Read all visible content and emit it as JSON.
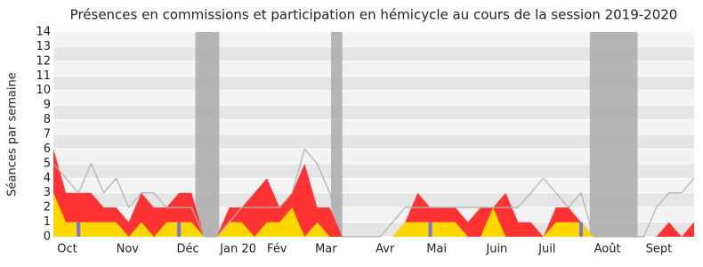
{
  "chart_data": {
    "type": "area",
    "title": "Présences en commissions et participation en hémicycle au cours de la session 2019-2020",
    "y_label": "Séances par semaine",
    "xlim": [
      0,
      51
    ],
    "ylim": [
      0,
      14
    ],
    "yticks": [
      0,
      1,
      2,
      3,
      4,
      5,
      6,
      7,
      8,
      9,
      10,
      11,
      12,
      13,
      14
    ],
    "xticks": [
      {
        "value": 1.1,
        "label": "Oct"
      },
      {
        "value": 5.9,
        "label": "Nov"
      },
      {
        "value": 10.7,
        "label": "Déc"
      },
      {
        "value": 14.7,
        "label": "Jan 20"
      },
      {
        "value": 17.8,
        "label": "Fév"
      },
      {
        "value": 21.7,
        "label": "Mar"
      },
      {
        "value": 26.4,
        "label": "Avr"
      },
      {
        "value": 30.5,
        "label": "Mai"
      },
      {
        "value": 35.3,
        "label": "Juin"
      },
      {
        "value": 39.3,
        "label": "Juil"
      },
      {
        "value": 44.1,
        "label": "Août"
      },
      {
        "value": 48.2,
        "label": "Sept"
      }
    ],
    "grid": true,
    "shaded_ranges": [
      [
        11.3,
        13.2
      ],
      [
        22.1,
        23.0
      ],
      [
        42.7,
        46.5
      ]
    ],
    "series": [
      {
        "color": "#ff3333",
        "style": "area",
        "values": [
          6,
          3,
          3,
          3,
          2,
          2,
          1,
          3,
          2,
          2,
          3,
          3,
          0,
          0,
          2,
          2,
          3,
          4,
          2,
          3,
          5,
          2,
          2,
          0,
          0,
          0,
          0,
          0,
          1,
          3,
          2,
          2,
          2,
          1,
          2,
          2,
          3,
          1,
          1,
          0,
          2,
          2,
          1,
          0,
          0,
          0,
          0,
          0,
          0,
          1,
          0,
          1
        ]
      },
      {
        "color": "#ffd700",
        "style": "area",
        "values": [
          3,
          1,
          1,
          1,
          1,
          1,
          0,
          1,
          0,
          1,
          1,
          1,
          0,
          0,
          1,
          1,
          0,
          1,
          1,
          2,
          0,
          1,
          0,
          0,
          0,
          0,
          0,
          0,
          1,
          1,
          1,
          1,
          1,
          0,
          0,
          2,
          0,
          0,
          0,
          0,
          1,
          1,
          1,
          0,
          0,
          0,
          0,
          0,
          0,
          0,
          0,
          0
        ]
      },
      {
        "color": "#b0b0b0",
        "style": "line",
        "values": [
          5,
          4,
          3,
          5,
          3,
          4,
          2,
          3,
          3,
          2,
          2,
          2,
          0,
          0,
          1,
          2,
          2,
          2,
          2,
          3,
          6,
          5,
          3,
          0,
          0,
          0,
          0,
          1,
          2,
          2,
          2,
          2,
          2,
          2,
          2,
          2,
          2,
          2,
          3,
          4,
          3,
          2,
          3,
          0,
          0,
          0,
          0,
          0,
          2,
          3,
          3,
          4
        ]
      },
      {
        "color": "#7777dd",
        "style": "bar",
        "values": [
          null,
          null,
          1,
          null,
          null,
          null,
          null,
          null,
          null,
          null,
          1,
          null,
          null,
          null,
          null,
          null,
          null,
          null,
          null,
          null,
          null,
          null,
          null,
          null,
          null,
          null,
          null,
          null,
          null,
          null,
          1,
          null,
          null,
          null,
          null,
          null,
          null,
          null,
          null,
          null,
          null,
          null,
          1,
          null,
          null,
          null,
          null,
          null,
          null,
          null,
          null,
          null
        ]
      }
    ]
  }
}
